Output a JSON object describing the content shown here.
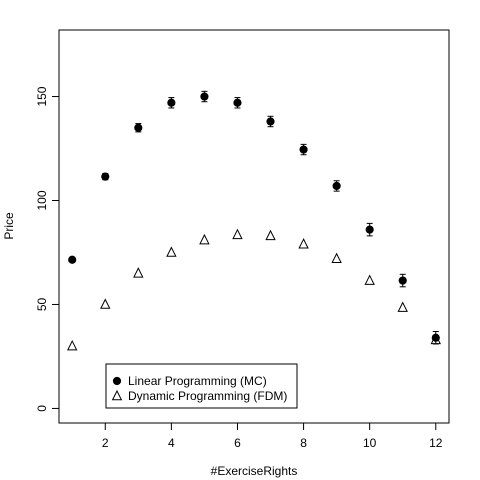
{
  "chart_data": {
    "type": "scatter",
    "xlabel": "#ExerciseRights",
    "ylabel": "Price",
    "xlim": [
      0.6,
      12.4
    ],
    "ylim": [
      -7,
      182
    ],
    "xticks": [
      2,
      4,
      6,
      8,
      10,
      12
    ],
    "yticks": [
      0,
      50,
      100,
      150
    ],
    "grid": false,
    "legend_position": "bottom-left",
    "series": [
      {
        "name": "Linear Programming (MC)",
        "marker": "filled-circle",
        "error_bars": true,
        "x": [
          1,
          2,
          3,
          4,
          5,
          6,
          7,
          8,
          9,
          10,
          11,
          12
        ],
        "y": [
          71.5,
          111.5,
          135,
          147,
          150,
          147,
          138,
          124.5,
          107,
          86,
          61.5,
          34
        ],
        "error": [
          1,
          1.5,
          2,
          2.5,
          2.5,
          2.5,
          2.5,
          2.5,
          2.5,
          3,
          3,
          3
        ]
      },
      {
        "name": "Dynamic Programming (FDM)",
        "marker": "open-triangle",
        "error_bars": false,
        "x": [
          1,
          2,
          3,
          4,
          5,
          6,
          7,
          8,
          9,
          10,
          11,
          12
        ],
        "y": [
          30,
          50,
          65,
          75,
          81,
          83.5,
          83,
          79,
          72,
          61.5,
          48.5,
          33
        ]
      }
    ]
  }
}
